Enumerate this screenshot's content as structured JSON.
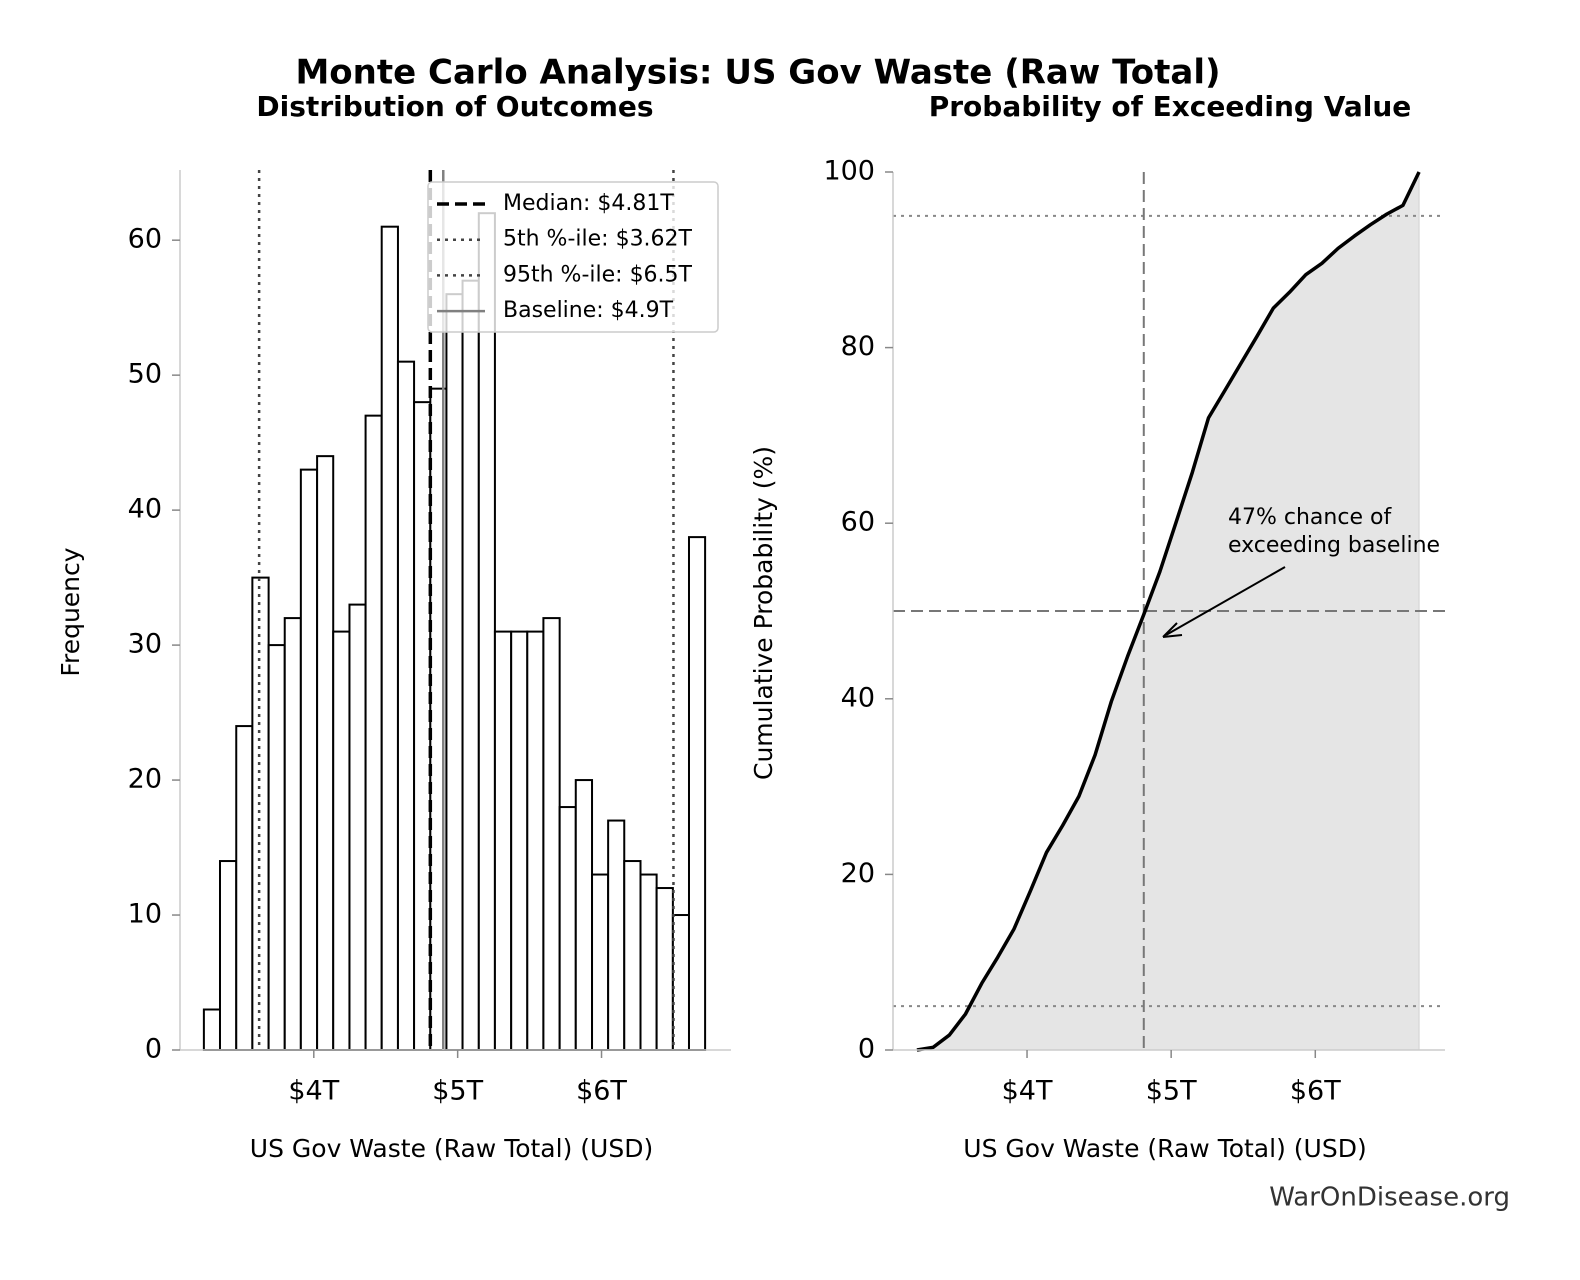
{
  "title": "Monte Carlo Analysis: US Gov Waste (Raw Total)",
  "footer": "WarOnDisease.org",
  "chart_data": [
    {
      "type": "histogram",
      "title": "Distribution of Outcomes",
      "x_label": "US Gov Waste (Raw Total) (USD)",
      "y_label": "Frequency",
      "bins": [
        3236000000000.0,
        3348000000000.0,
        3461000000000.0,
        3573000000000.0,
        3686000000000.0,
        3798000000000.0,
        3910000000000.0,
        4023000000000.0,
        4135000000000.0,
        4248000000000.0,
        4360000000000.0,
        4472000000000.0,
        4585000000000.0,
        4697000000000.0,
        4810000000000.0,
        4922000000000.0,
        5034000000000.0,
        5147000000000.0,
        5259000000000.0,
        5372000000000.0,
        5484000000000.0,
        5596000000000.0,
        5709000000000.0,
        5821000000000.0,
        5934000000000.0,
        6046000000000.0,
        6158000000000.0,
        6271000000000.0,
        6383000000000.0,
        6496000000000.0,
        6608000000000.0,
        6720000000000.0
      ],
      "values": [
        3,
        14,
        24,
        35,
        30,
        32,
        43,
        44,
        31,
        33,
        47,
        61,
        51,
        48,
        49,
        56,
        57,
        62,
        31,
        31,
        31,
        32,
        18,
        20,
        13,
        17,
        14,
        13,
        12,
        10,
        38
      ],
      "color": "#ffffff",
      "edgecolor": "#000000",
      "xlim": [
        3070000000000.0,
        6900000000000.0
      ],
      "xticks": [
        {
          "value": 4000000000000.0,
          "label": "$4T"
        },
        {
          "value": 5000000000000.0,
          "label": "$5T"
        },
        {
          "value": 6000000000000.0,
          "label": "$6T"
        }
      ],
      "ylim": [
        0,
        65.2
      ],
      "yticks": [
        0,
        10,
        20,
        30,
        40,
        50,
        60
      ],
      "vlines": [
        {
          "name": "Median: $4.81T",
          "value": 4810000000000.0,
          "color": "#000000",
          "style": "dashed"
        },
        {
          "name": "5th %-ile: $3.62T",
          "value": 3620000000000.0,
          "color": "#444444",
          "style": "dotted"
        },
        {
          "name": "95th %-ile: $6.5T",
          "value": 6500000000000.0,
          "color": "#444444",
          "style": "dotted"
        },
        {
          "name": "Baseline: $4.9T",
          "value": 4900000000000.0,
          "color": "#808080",
          "style": "solid"
        }
      ],
      "legend": "upper right"
    },
    {
      "type": "line",
      "title": "Probability of Exceeding Value",
      "x_label": "US Gov Waste (Raw Total) (USD)",
      "y_label": "Cumulative Probability (%)",
      "x": [
        3236000000000.0,
        3348000000000.0,
        3461000000000.0,
        3573000000000.0,
        3686000000000.0,
        3798000000000.0,
        3910000000000.0,
        4023000000000.0,
        4135000000000.0,
        4248000000000.0,
        4360000000000.0,
        4472000000000.0,
        4585000000000.0,
        4697000000000.0,
        4810000000000.0,
        4922000000000.0,
        5034000000000.0,
        5147000000000.0,
        5259000000000.0,
        5372000000000.0,
        5484000000000.0,
        5596000000000.0,
        5709000000000.0,
        5821000000000.0,
        5934000000000.0,
        6046000000000.0,
        6158000000000.0,
        6271000000000.0,
        6383000000000.0,
        6496000000000.0,
        6608000000000.0,
        6720000000000.0
      ],
      "values": [
        0,
        0.3,
        1.7,
        4.1,
        7.6,
        10.6,
        13.8,
        18.1,
        22.5,
        25.6,
        28.9,
        33.6,
        39.7,
        44.8,
        49.6,
        54.5,
        60.1,
        65.8,
        72.0,
        75.1,
        78.2,
        81.3,
        84.5,
        86.3,
        88.3,
        89.6,
        91.3,
        92.7,
        94.0,
        95.2,
        96.2,
        100
      ],
      "color": "#000000",
      "fill": "#e5e5e5",
      "xlim": [
        3070000000000.0,
        6900000000000.0
      ],
      "xticks": [
        {
          "value": 4000000000000.0,
          "label": "$4T"
        },
        {
          "value": 5000000000000.0,
          "label": "$5T"
        },
        {
          "value": 6000000000000.0,
          "label": "$6T"
        }
      ],
      "ylim": [
        0,
        100
      ],
      "yticks": [
        0,
        20,
        40,
        60,
        80,
        100
      ],
      "vlines": [
        {
          "value": 4810000000000.0,
          "color": "#777777",
          "style": "dashed"
        }
      ],
      "hlines": [
        {
          "value": 5,
          "color": "#888888",
          "style": "dotted"
        },
        {
          "value": 95,
          "color": "#888888",
          "style": "dotted"
        },
        {
          "value": 50,
          "color": "#777777",
          "style": "dashed"
        }
      ],
      "annotation": [
        "47% chance of",
        "exceeding baseline"
      ]
    }
  ]
}
